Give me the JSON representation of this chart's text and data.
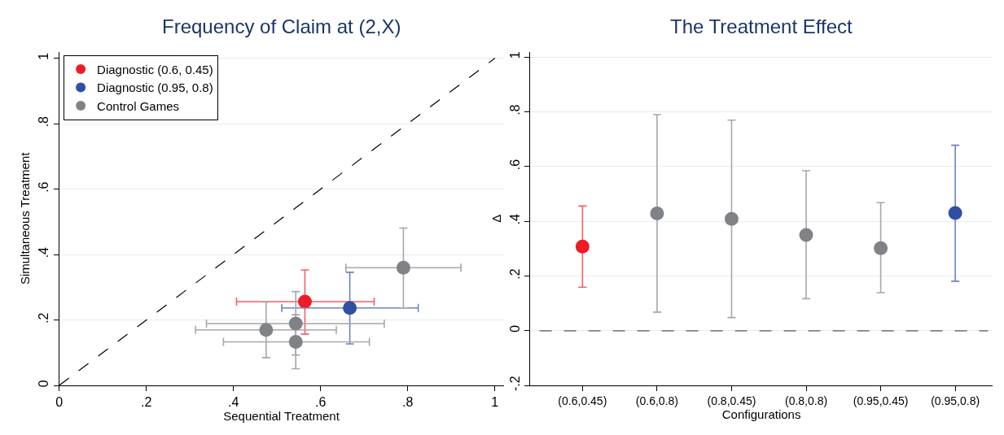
{
  "chart_data": [
    {
      "type": "scatter",
      "title": "Frequency of Claim at (2,X)",
      "xlabel": "Sequential Treatment",
      "ylabel": "Simultaneous Treatment",
      "xlim": [
        0,
        1.02
      ],
      "ylim": [
        0,
        1.02
      ],
      "xticks": [
        0,
        {
          "value": 0.2,
          "label": ".2"
        },
        {
          "value": 0.4,
          "label": ".4"
        },
        {
          "value": 0.6,
          "label": ".6"
        },
        {
          "value": 0.8,
          "label": ".8"
        },
        1
      ],
      "yticks": [
        0,
        {
          "value": 0.2,
          "label": ".2"
        },
        {
          "value": 0.4,
          "label": ".4"
        },
        {
          "value": 0.6,
          "label": ".6"
        },
        {
          "value": 0.8,
          "label": ".8"
        },
        1
      ],
      "grid": "y",
      "legend": "top left",
      "marker": "circle",
      "series": [
        {
          "name": "Diagnostic (0.6, 0.45)",
          "color": "#ee1c25",
          "x": [
            0.564
          ],
          "values": [
            0.256
          ],
          "errors": [
            [
              0.157,
              0.353
            ]
          ],
          "xerrors": [
            [
              0.407,
              0.723
            ]
          ]
        },
        {
          "name": "Diagnostic (0.95, 0.8)",
          "color": "#2f4fa2",
          "x": [
            0.667
          ],
          "values": [
            0.237
          ],
          "errors": [
            [
              0.127,
              0.346
            ]
          ],
          "xerrors": [
            [
              0.511,
              0.824
            ]
          ]
        },
        {
          "name": "Control Games",
          "color": "#808285",
          "x": [
            0.79,
            0.475,
            0.543,
            0.543
          ],
          "values": [
            0.36,
            0.17,
            0.189,
            0.133
          ],
          "errors": [
            [
              0.237,
              0.481
            ],
            [
              0.085,
              0.255
            ],
            [
              0.093,
              0.287
            ],
            [
              0.051,
              0.216
            ]
          ],
          "xerrors": [
            [
              0.658,
              0.922
            ],
            [
              0.313,
              0.636
            ],
            [
              0.338,
              0.746
            ],
            [
              0.377,
              0.712
            ]
          ]
        },
        {
          "type": "line",
          "color": "#000000",
          "line_style": "dashed",
          "marker": "none",
          "x": [
            0,
            1
          ],
          "values": [
            0,
            1
          ]
        }
      ]
    },
    {
      "type": "scatter",
      "title": "The Treatment Effect",
      "xlabel": "Configurations",
      "ylabel": "Δ",
      "categories": [
        "(0.6,0.45)",
        "(0.6,0.8)",
        "(0.8,0.45)",
        "(0.8,0.8)",
        "(0.95,0.45)",
        "(0.95,0.8)"
      ],
      "ylim": [
        -0.2,
        1.02
      ],
      "yticks": [
        {
          "value": -0.2,
          "label": "-.2"
        },
        0,
        {
          "value": 0.2,
          "label": ".2"
        },
        {
          "value": 0.4,
          "label": ".4"
        },
        {
          "value": 0.6,
          "label": ".6"
        },
        {
          "value": 0.8,
          "label": ".8"
        },
        1
      ],
      "grid": "y",
      "marker": "circle",
      "values": [
        0.308,
        0.429,
        0.409,
        0.35,
        0.302,
        0.43
      ],
      "colors": [
        "#ee1c25",
        "#808285",
        "#808285",
        "#808285",
        "#808285",
        "#2f4fa2"
      ],
      "errors": [
        [
          0.159,
          0.456
        ],
        [
          0.068,
          0.79
        ],
        [
          0.048,
          0.77
        ],
        [
          0.117,
          0.585
        ],
        [
          0.139,
          0.468
        ],
        [
          0.181,
          0.678
        ]
      ],
      "ref_lines": [
        {
          "axis": "y",
          "value": 0,
          "color": "#555555",
          "line_style": "dashed"
        }
      ]
    }
  ]
}
